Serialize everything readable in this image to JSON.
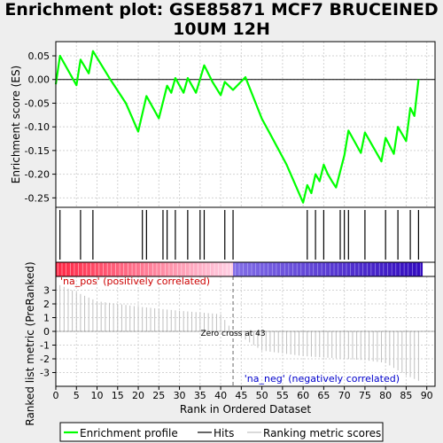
{
  "title_line1": "Enrichment plot: GSE85871 MCF7 BRUCEINED",
  "title_line2": "10UM 12H",
  "chart_data": {
    "type": "line",
    "title": "Enrichment plot: GSE85871 MCF7 BRUCEINED 10UM 12H",
    "es_panel": {
      "ylabel": "Enrichment score (ES)",
      "ylim": [
        -0.27,
        0.08
      ],
      "yticks": [
        0.05,
        0.0,
        -0.05,
        -0.1,
        -0.15,
        -0.2,
        -0.25
      ],
      "ytick_labels": [
        "0.05",
        "0.00",
        "-0.05",
        "-0.10",
        "-0.15",
        "-0.20",
        "-0.25"
      ],
      "series_color": "#00ff00",
      "x": [
        0,
        1,
        5,
        6,
        8,
        9,
        13,
        17,
        20,
        22,
        25,
        27,
        28,
        29,
        31,
        32,
        34,
        36,
        38,
        40,
        41,
        43,
        46,
        50,
        52,
        56,
        60,
        61,
        62,
        63,
        64,
        65,
        66,
        67,
        68,
        70,
        71,
        74,
        75,
        79,
        80,
        82,
        83,
        85,
        86,
        87,
        88
      ],
      "y": [
        -0.01,
        0.05,
        -0.012,
        0.042,
        0.013,
        0.06,
        0.003,
        -0.05,
        -0.11,
        -0.035,
        -0.082,
        -0.013,
        -0.028,
        0.003,
        -0.028,
        0.003,
        -0.028,
        0.03,
        -0.005,
        -0.033,
        -0.005,
        -0.022,
        0.005,
        -0.083,
        -0.115,
        -0.18,
        -0.26,
        -0.223,
        -0.24,
        -0.2,
        -0.215,
        -0.18,
        -0.2,
        -0.215,
        -0.228,
        -0.16,
        -0.108,
        -0.155,
        -0.112,
        -0.173,
        -0.123,
        -0.157,
        -0.1,
        -0.13,
        -0.06,
        -0.077,
        0.0
      ]
    },
    "hits": {
      "x": [
        1,
        6,
        9,
        21,
        22,
        26,
        27,
        29,
        32,
        35,
        36,
        41,
        43,
        61,
        63,
        65,
        69,
        70,
        71,
        75,
        80,
        83,
        86,
        88
      ]
    },
    "ranked_panel": {
      "ylabel": "Ranked list metric (PreRanked)",
      "ylim": [
        -4,
        4
      ],
      "yticks": [
        3,
        2,
        1,
        0,
        -1,
        -2,
        -3
      ],
      "ytick_labels": [
        "3",
        "2",
        "1",
        "0",
        "-1",
        "-2",
        "-3"
      ],
      "metric_x": [
        0,
        10,
        20,
        30,
        40,
        43,
        50,
        60,
        70,
        75,
        80,
        85,
        88
      ],
      "metric_y": [
        3.5,
        2.2,
        1.8,
        1.5,
        1.25,
        0,
        -1.4,
        -1.8,
        -2.0,
        -2.1,
        -2.3,
        -3.2,
        -3.6
      ],
      "pos_label": "'na_pos' (positively correlated)",
      "neg_label": "'na_neg' (negatively correlated)",
      "zero_cross_label": "Zero cross at 43",
      "zero_cross": 43
    },
    "xlabel": "Rank in Ordered Dataset",
    "xlim": [
      0,
      92
    ],
    "xticks": [
      0,
      5,
      10,
      15,
      20,
      25,
      30,
      35,
      40,
      45,
      50,
      55,
      60,
      65,
      70,
      75,
      80,
      85,
      90
    ],
    "xtick_labels": [
      "0",
      "5",
      "10",
      "15",
      "20",
      "25",
      "30",
      "35",
      "40",
      "45",
      "50",
      "55",
      "60",
      "65",
      "70",
      "75",
      "80",
      "85",
      "90"
    ],
    "legend": [
      {
        "label": "Enrichment profile",
        "color": "#00ff00"
      },
      {
        "label": "Hits",
        "color": "#000000"
      },
      {
        "label": "Ranking metric scores",
        "color": "#c0c0c0"
      }
    ],
    "legend_position": "bottom",
    "grid": true
  }
}
